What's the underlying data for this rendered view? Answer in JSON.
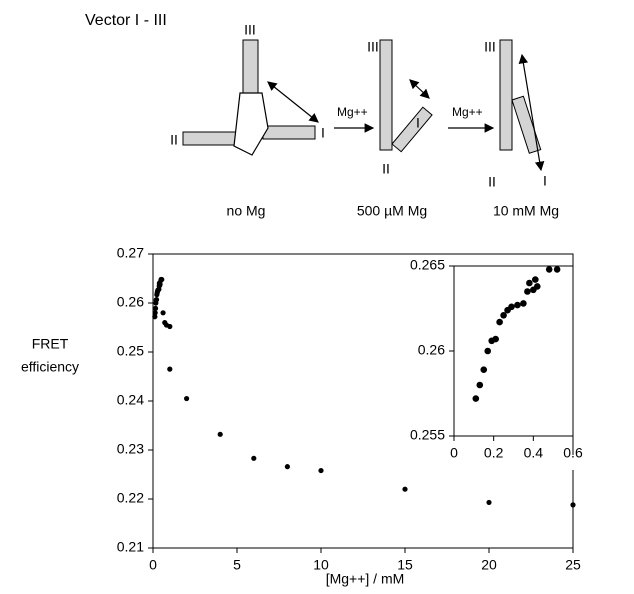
{
  "diagram": {
    "title": "Vector I - III",
    "states": [
      {
        "caption": "no Mg",
        "arm_labels": [
          "III",
          "II",
          "I"
        ]
      },
      {
        "caption": "500 µM Mg",
        "arm_labels": [
          "III",
          "I",
          "II"
        ]
      },
      {
        "caption": "10 mM Mg",
        "arm_labels": [
          "III",
          "II",
          "I"
        ]
      }
    ],
    "arrows": [
      "Mg++",
      "Mg++"
    ]
  },
  "chart_data": [
    {
      "type": "scatter",
      "ylabel": [
        "FRET",
        "efficiency"
      ],
      "xlabel": "[Mg++] / mM",
      "color": "#000000",
      "x": [
        0.11,
        0.13,
        0.15,
        0.17,
        0.19,
        0.21,
        0.23,
        0.25,
        0.27,
        0.29,
        0.32,
        0.35,
        0.37,
        0.38,
        0.4,
        0.41,
        0.42,
        0.48,
        0.52,
        0.6,
        0.7,
        0.8,
        1,
        1,
        2,
        4,
        6,
        8,
        10,
        15,
        20,
        25
      ],
      "y": [
        0.2572,
        0.258,
        0.2589,
        0.26,
        0.2606,
        0.2607,
        0.2617,
        0.2621,
        0.2624,
        0.2626,
        0.2627,
        0.2628,
        0.2635,
        0.264,
        0.2636,
        0.2642,
        0.2638,
        0.2648,
        0.2648,
        0.258,
        0.256,
        0.2555,
        0.2552,
        0.2465,
        0.2405,
        0.2332,
        0.2283,
        0.2266,
        0.2258,
        0.222,
        0.2193,
        0.2188
      ],
      "xlim": [
        0,
        25
      ],
      "xticks": [
        0,
        5,
        10,
        15,
        20,
        25
      ],
      "ylim": [
        0.21,
        0.27
      ],
      "yticks": [
        0.21,
        0.22,
        0.23,
        0.24,
        0.25,
        0.26,
        0.27
      ]
    },
    {
      "type": "scatter",
      "color": "#000000",
      "x": [
        0.11,
        0.13,
        0.15,
        0.17,
        0.19,
        0.21,
        0.23,
        0.25,
        0.27,
        0.29,
        0.32,
        0.35,
        0.37,
        0.38,
        0.4,
        0.41,
        0.42,
        0.48,
        0.52
      ],
      "y": [
        0.2572,
        0.258,
        0.2589,
        0.26,
        0.2606,
        0.2607,
        0.2617,
        0.2621,
        0.2624,
        0.2626,
        0.2627,
        0.2628,
        0.2635,
        0.264,
        0.2636,
        0.2642,
        0.2638,
        0.2648,
        0.2648
      ],
      "xlim": [
        0,
        0.6
      ],
      "xticks": [
        0,
        0.2,
        0.4,
        0.6
      ],
      "ylim": [
        0.255,
        0.265
      ],
      "yticks": [
        0.255,
        0.26,
        0.265
      ]
    }
  ]
}
